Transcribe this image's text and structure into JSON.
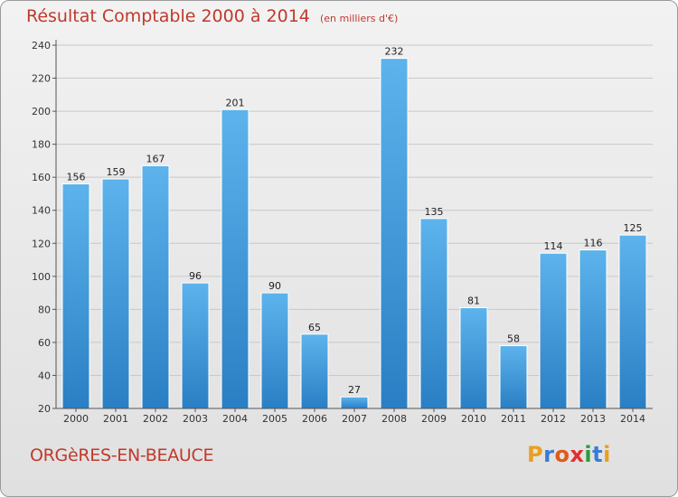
{
  "chart_data": {
    "type": "bar",
    "title": "Résultat Comptable 2000 à 2014",
    "subtitle": "(en milliers d'€)",
    "categories": [
      "2000",
      "2001",
      "2002",
      "2003",
      "2004",
      "2005",
      "2006",
      "2007",
      "2008",
      "2009",
      "2010",
      "2011",
      "2012",
      "2013",
      "2014"
    ],
    "values": [
      156,
      159,
      167,
      96,
      201,
      90,
      65,
      27,
      232,
      135,
      81,
      58,
      114,
      116,
      125
    ],
    "ylim": [
      20,
      240
    ],
    "yticks": [
      20,
      40,
      60,
      80,
      100,
      120,
      140,
      160,
      180,
      200,
      220,
      240
    ],
    "xlabel": "",
    "ylabel": "",
    "grid": true
  },
  "commune": "ORGèRES-EN-BEAUCE",
  "brand": {
    "letters": [
      "P",
      "r",
      "o",
      "x",
      "i",
      "t",
      "i"
    ]
  },
  "colors": {
    "bar": "#4aa3e0",
    "bar_dark": "#2a7fc4",
    "title": "#c0392b"
  }
}
